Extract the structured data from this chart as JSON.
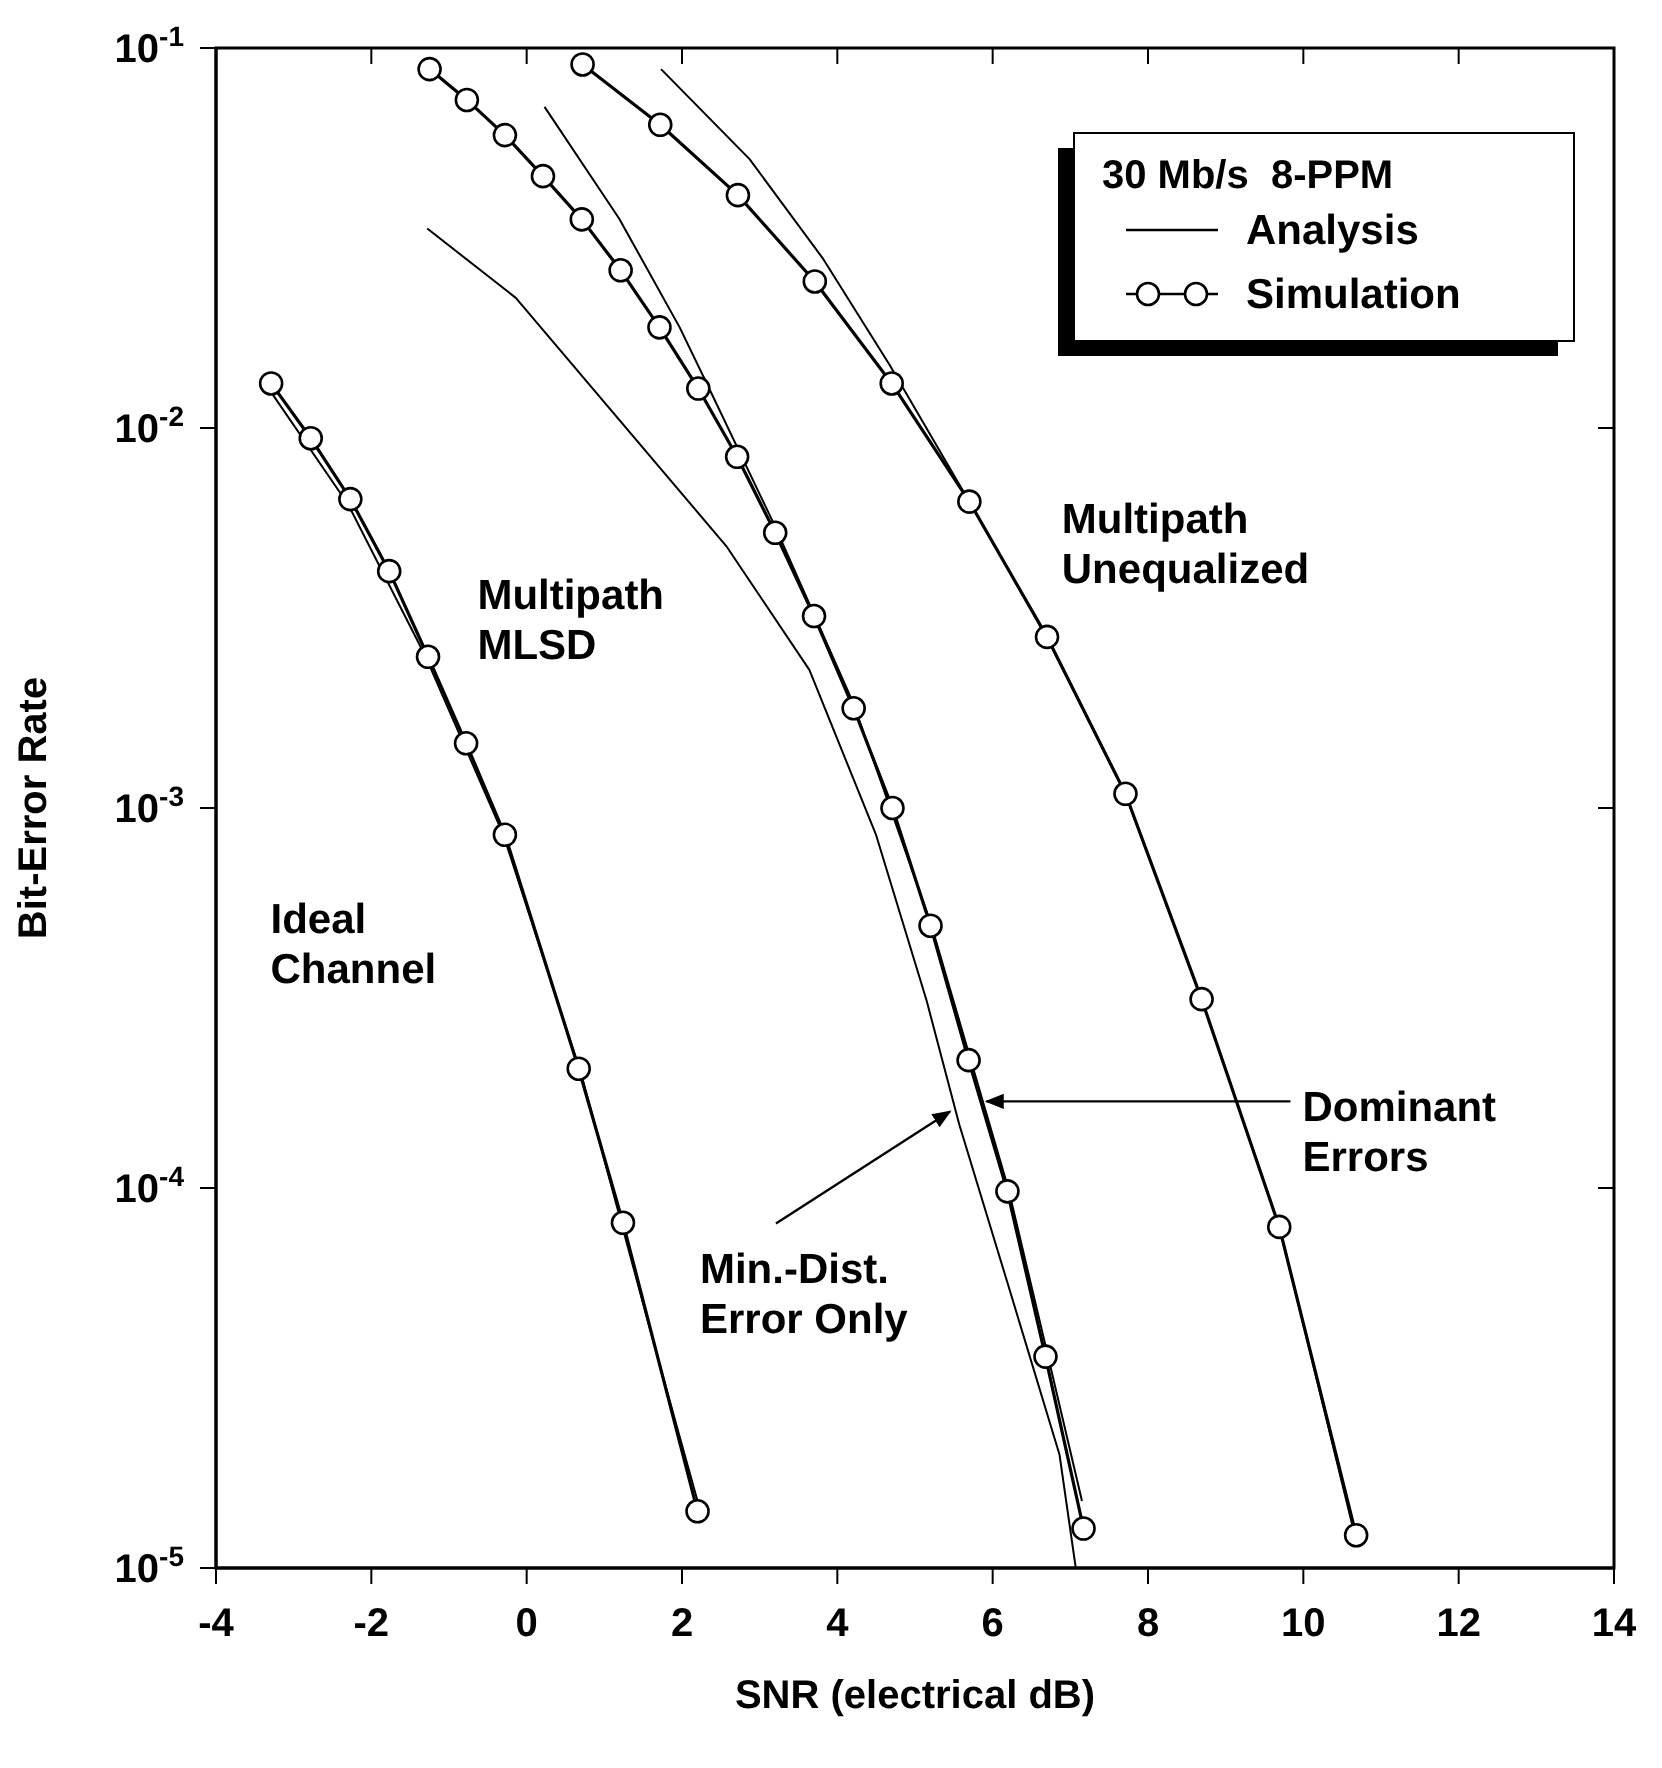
{
  "chart_data": {
    "type": "line",
    "xlabel": "SNR (electrical dB)",
    "ylabel": "Bit-Error Rate",
    "legend_title": "30 Mb/s  8-PPM",
    "legend": "top right",
    "log": "y",
    "xlim": [
      -4,
      14
    ],
    "xticks": [
      -4,
      -2,
      0,
      2,
      4,
      6,
      8,
      10,
      12,
      14
    ],
    "ylim": [
      1e-05,
      0.1
    ],
    "yticks": [
      {
        "value": 1e-05,
        "label": "10$^{-5}$"
      },
      {
        "value": 0.0001,
        "label": "10$^{-4}$"
      },
      {
        "value": 0.001,
        "label": "10$^{-3}$"
      },
      {
        "value": 0.01,
        "label": "10$^{-2}$"
      },
      {
        "value": 0.1,
        "label": "10$^{-1}$"
      }
    ],
    "series": [
      {
        "name": "Analysis",
        "color": "#000000",
        "marker": "none",
        "x": [
          -3.3,
          -2.3,
          -1.3,
          -0.3,
          0.7,
          1.7,
          2.2
        ],
        "values": [
          0.0125,
          0.0063,
          0.0025,
          0.00085,
          0.0002,
          3.5e-05,
          1.5e-05
        ]
      },
      {
        "color": "#000000",
        "marker": "none",
        "x": [
          0.23,
          1.19,
          1.97,
          2.35,
          3.2,
          4.2,
          5.2,
          6.2,
          6.7,
          7.15
        ],
        "values": [
          0.07,
          0.0356,
          0.0184,
          0.0127,
          0.0055,
          0.0019,
          0.0005,
          0.0001,
          3.7e-05,
          1.5e-05
        ]
      },
      {
        "color": "#000000",
        "marker": "none",
        "x": [
          -1.28,
          -0.14,
          2.57,
          3.64,
          4.5,
          5.15,
          5.57,
          6.22,
          6.86,
          7.07
        ],
        "values": [
          0.0335,
          0.022,
          0.00489,
          0.00231,
          0.000848,
          0.000311,
          0.000147,
          5.38e-05,
          1.99e-05,
          1e-05
        ]
      },
      {
        "color": "#000000",
        "marker": "none",
        "x": [
          1.73,
          2.87,
          3.81,
          4.67,
          5.7,
          6.7,
          7.7,
          8.7,
          9.7,
          10.65
        ],
        "values": [
          0.088,
          0.051,
          0.028,
          0.0147,
          0.0064,
          0.0028,
          0.0011,
          0.00031,
          7.8e-05,
          1.25e-05
        ]
      },
      {
        "name": "Simulation",
        "color": "#000000",
        "marker": "circle",
        "x": [
          -3.29,
          -2.78,
          -2.27,
          -1.77,
          -1.27,
          -0.78,
          -0.28,
          0.67,
          1.24,
          2.2
        ],
        "values": [
          0.0131,
          0.0094,
          0.0065,
          0.0042,
          0.0025,
          0.00148,
          0.00085,
          0.000206,
          8.1e-05,
          1.41e-05
        ]
      },
      {
        "color": "#000000",
        "marker": "circle",
        "x": [
          -1.25,
          -0.77,
          -0.28,
          0.21,
          0.71,
          1.21,
          1.71,
          2.21,
          2.71,
          3.2,
          3.7,
          4.21,
          4.71,
          5.2,
          5.69,
          6.19,
          6.68,
          7.17
        ],
        "values": [
          0.088,
          0.073,
          0.059,
          0.046,
          0.0354,
          0.026,
          0.0184,
          0.0127,
          0.0084,
          0.0053,
          0.0032,
          0.00183,
          0.001,
          0.00049,
          0.000217,
          9.8e-05,
          3.6e-05,
          1.27e-05
        ]
      },
      {
        "color": "#000000",
        "marker": "circle",
        "x": [
          0.72,
          1.72,
          2.72,
          3.71,
          4.7,
          5.7,
          6.7,
          7.71,
          8.69,
          9.69,
          10.68
        ],
        "values": [
          0.0905,
          0.0628,
          0.041,
          0.0243,
          0.0131,
          0.0064,
          0.00282,
          0.00109,
          0.000314,
          7.9e-05,
          1.22e-05
        ]
      }
    ],
    "annotations": [
      "Multipath\nMLSD",
      "Ideal\nChannel",
      "Multipath\nUnequalized",
      {
        "text": "Dominant\nErrors",
        "x": 5.92,
        "y": 0.000169
      },
      {
        "text": "Min.-Dist.\nError Only",
        "x": 5.45,
        "y": 0.000159
      }
    ]
  }
}
